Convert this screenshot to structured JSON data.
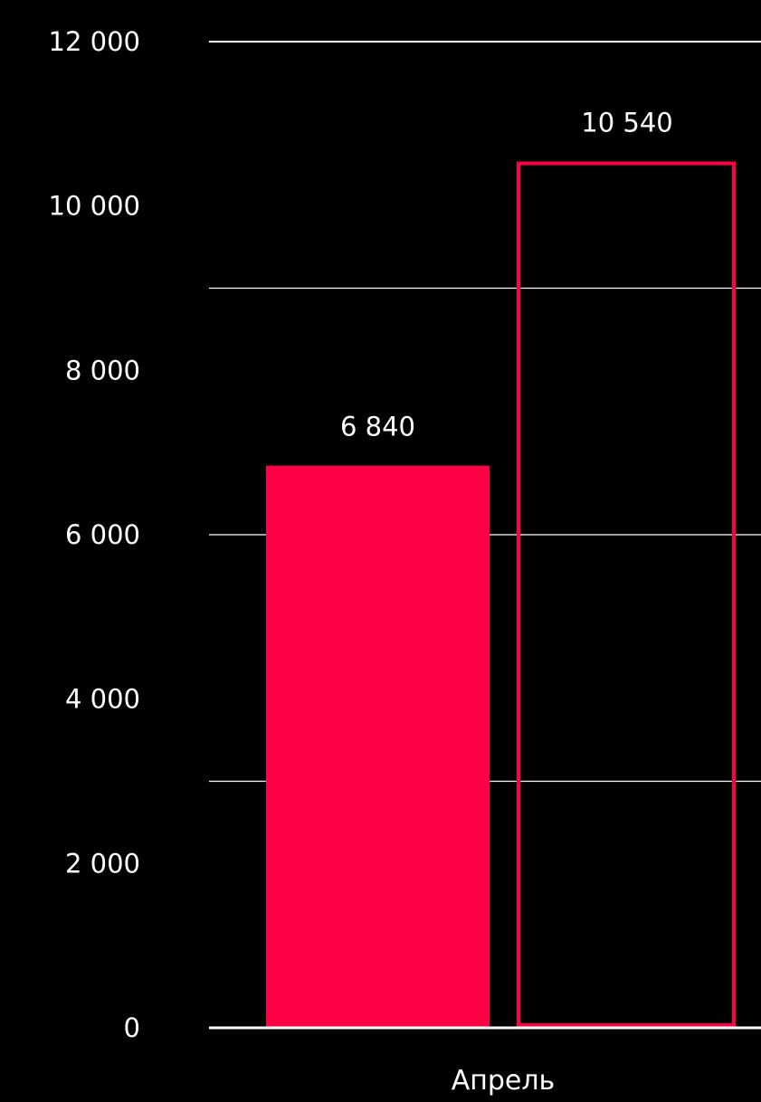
{
  "chart_data": {
    "type": "bar",
    "categories": [
      "Апрель"
    ],
    "series": [
      {
        "values": [
          6840
        ],
        "style": "filled",
        "color": "#ff0044"
      },
      {
        "values": [
          10540
        ],
        "style": "outline",
        "color": "#ff0044"
      }
    ],
    "data_labels": [
      "6 840",
      "10 540"
    ],
    "y_ticks": [
      {
        "value": 0,
        "label": "0"
      },
      {
        "value": 2000,
        "label": "2 000"
      },
      {
        "value": 4000,
        "label": "4 000"
      },
      {
        "value": 6000,
        "label": "6 000"
      },
      {
        "value": 8000,
        "label": "8 000"
      },
      {
        "value": 10000,
        "label": "10 000"
      },
      {
        "value": 12000,
        "label": "12 000"
      }
    ],
    "gridlines": [
      0,
      3000,
      6000,
      9000,
      12000
    ],
    "ylim": [
      0,
      12000
    ],
    "title": "",
    "xlabel": "",
    "ylabel": "",
    "grid": true,
    "colors": {
      "background": "#000000",
      "text": "#ffffff",
      "gridline": "#ffffff"
    }
  }
}
